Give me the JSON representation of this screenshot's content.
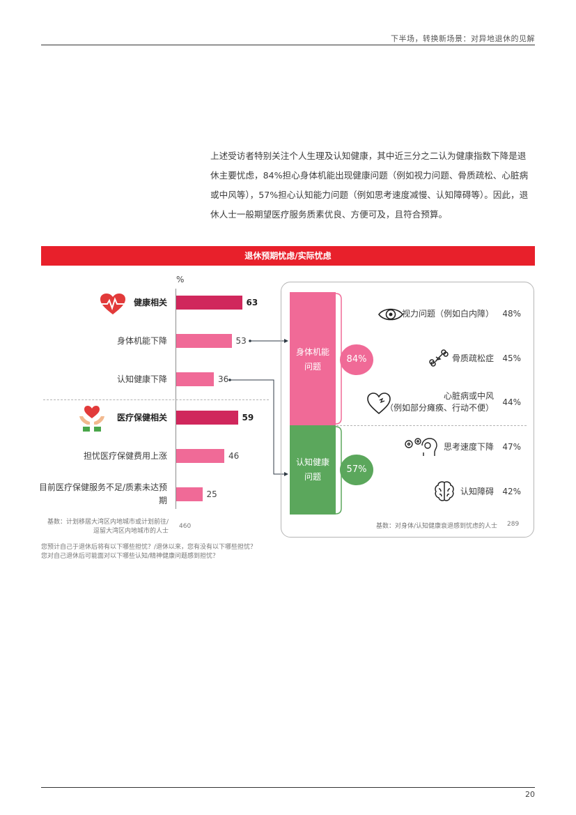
{
  "header": {
    "title": "下半场，转换新场景：对异地退休的见解"
  },
  "intro": {
    "lines": [
      "上述受访者特别关注个人生理及认知健康，其中近三分之二认为健康指数下降是退",
      "休主要忧虑，84%担心身体机能出现健康问题（例如视力问题、骨质疏松、心脏病",
      "或中风等），57%担心认知能力问题（例如思考速度减慢、认知障碍等）。因此，退",
      "休人士一般期望医疗服务质素优良、方便可及，且符合预算。"
    ]
  },
  "banner": {
    "title": "退休预期忧虑/实际忧虑"
  },
  "colors": {
    "red": "#e8202b",
    "crimson": "#d0275c",
    "pink": "#f06a97",
    "green": "#5ba75c"
  },
  "chart_data": {
    "type": "bar",
    "unit": "%",
    "categories": [
      "健康相关",
      "身体机能下降",
      "认知健康下降",
      "医疗保健相关",
      "担忧医疗保健费用上涨",
      "目前医疗保健服务不足/质素未达预期"
    ],
    "values": [
      63,
      53,
      36,
      59,
      46,
      25
    ],
    "value_labels": [
      "63",
      "53",
      "36",
      "59",
      "46",
      "25"
    ],
    "xlim": [
      0,
      100
    ]
  },
  "left_chart": {
    "base_label": [
      "基数：计划移居大湾区内地城市或计划前往/",
      "逗留大湾区内地城市的人士"
    ],
    "base_n": "460"
  },
  "footnote": [
    "您预计自己于退休后将有以下哪些担忧？/退休以来，您有没有以下哪些担忧？",
    "您对自己退休后可能面对以下哪些认知/精神健康问题感到担忧？"
  ],
  "right_panel": {
    "physical": {
      "label": [
        "身体机能",
        "问题"
      ],
      "pct": "84%"
    },
    "cognitive": {
      "label": [
        "认知健康",
        "问题"
      ],
      "pct": "57%"
    },
    "items": [
      {
        "label": "视力问题（例如白内障）",
        "value": "48%",
        "icon": "eye-icon"
      },
      {
        "label": "骨质疏松症",
        "value": "45%",
        "icon": "broken-bone-icon"
      },
      {
        "label": "心脏病或中风",
        "sublabel": "（例如部分瘫痪、行动不便）",
        "value": "44%",
        "icon": "heart-outline-icon"
      },
      {
        "label": "思考速度下降",
        "value": "47%",
        "icon": "gears-head-icon"
      },
      {
        "label": "认知障碍",
        "value": "42%",
        "icon": "brain-icon"
      }
    ],
    "base_label": "基数：对身体/认知健康衰退感到忧虑的人士",
    "base_n": "289"
  },
  "page": {
    "number": "20"
  }
}
